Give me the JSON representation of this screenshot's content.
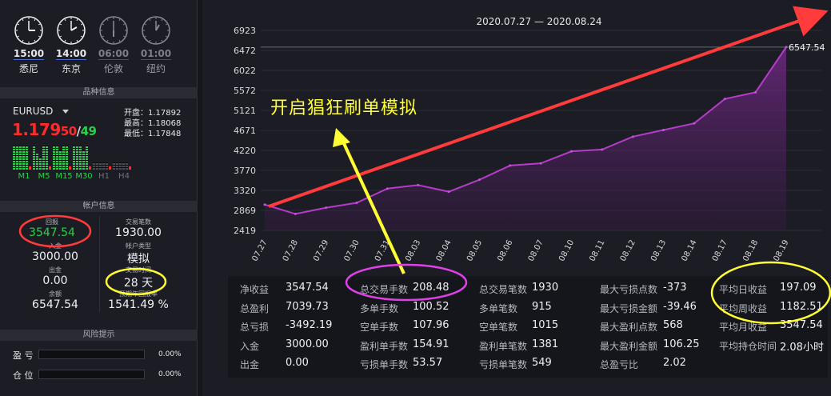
{
  "clocks": [
    {
      "time": "15:00",
      "city": "悉尼",
      "active": true,
      "h": 15,
      "m": 0
    },
    {
      "time": "14:00",
      "city": "东京",
      "active": true,
      "h": 14,
      "m": 0
    },
    {
      "time": "06:00",
      "city": "伦敦",
      "active": false,
      "h": 6,
      "m": 0
    },
    {
      "time": "01:00",
      "city": "纽约",
      "active": false,
      "h": 1,
      "m": 0
    }
  ],
  "sections": {
    "variety": "品种信息",
    "account": "帐户信息",
    "risk": "风险提示"
  },
  "quote": {
    "symbol": "EURUSD",
    "price_main": "1.179",
    "price_a": "50",
    "slash": "/",
    "price_b": "49",
    "open": "开盘：1.17892",
    "high": "最高：1.18068",
    "low": "最低：1.17848"
  },
  "timeframes": [
    {
      "label": "M1",
      "active": true
    },
    {
      "label": "M5",
      "active": true
    },
    {
      "label": "M15",
      "active": true
    },
    {
      "label": "M30",
      "active": true
    },
    {
      "label": "H1",
      "active": false
    },
    {
      "label": "H4",
      "active": false
    }
  ],
  "account": {
    "return_label": "回报",
    "return_value": "3547.54",
    "trades_label": "交易笔数",
    "trades_value": "1930.00",
    "deposit_label": "入金",
    "deposit_value": "3000.00",
    "acctype_label": "帐户类型",
    "acctype_value": "模拟",
    "withdraw_label": "出金",
    "withdraw_value": "0.00",
    "days_label": "交易时间",
    "days_value": "28 天",
    "balance_label": "余额",
    "balance_value": "6547.54",
    "rate_label": "预期年回报率",
    "rate_value": "1541.49 %"
  },
  "risk": [
    {
      "label": "盈 亏",
      "pct": "0.00%"
    },
    {
      "label": "仓 位",
      "pct": "0.00%"
    }
  ],
  "chart_data": {
    "type": "area",
    "title": "2020.07.27 — 2020.08.24",
    "categories": [
      "07.27",
      "07.28",
      "07.29",
      "07.30",
      "07.31",
      "08.03",
      "08.04",
      "08.05",
      "08.06",
      "08.07",
      "08.10",
      "08.11",
      "08.12",
      "08.13",
      "08.14",
      "08.17",
      "08.18",
      "08.19"
    ],
    "values": [
      3000,
      2790,
      2930,
      3040,
      3360,
      3440,
      3290,
      3560,
      3880,
      3930,
      4200,
      4240,
      4530,
      4680,
      4830,
      5380,
      5530,
      6547.54
    ],
    "yticks": [
      6923,
      6472,
      6022,
      5572,
      5121,
      4671,
      4220,
      3770,
      3320,
      2869,
      2419
    ],
    "ylim": [
      2419,
      6923
    ],
    "end_label": "6547.54"
  },
  "annotation": "开启猖狂刷单模拟",
  "stats": [
    [
      {
        "l": "净收益",
        "v": "3547.54"
      },
      {
        "l": "总盈利",
        "v": "7039.73"
      },
      {
        "l": "总亏损",
        "v": "-3492.19"
      },
      {
        "l": "入金",
        "v": "3000.00"
      },
      {
        "l": "出金",
        "v": "0.00"
      }
    ],
    [
      {
        "l": "总交易手数",
        "v": "208.48"
      },
      {
        "l": "多单手数",
        "v": "100.52"
      },
      {
        "l": "空单手数",
        "v": "107.96"
      },
      {
        "l": "盈利单手数",
        "v": "154.91"
      },
      {
        "l": "亏损单手数",
        "v": "53.57"
      }
    ],
    [
      {
        "l": "总交易笔数",
        "v": "1930"
      },
      {
        "l": "多单笔数",
        "v": "915"
      },
      {
        "l": "空单笔数",
        "v": "1015"
      },
      {
        "l": "盈利单笔数",
        "v": "1381"
      },
      {
        "l": "亏损单笔数",
        "v": "549"
      }
    ],
    [
      {
        "l": "最大亏损点数",
        "v": "-373"
      },
      {
        "l": "最大亏损金额",
        "v": "-39.46"
      },
      {
        "l": "最大盈利点数",
        "v": "568"
      },
      {
        "l": "最大盈利金额",
        "v": "106.25"
      },
      {
        "l": "总盈亏比",
        "v": "2.02"
      }
    ],
    [
      {
        "l": "平均日收益",
        "v": "197.09"
      },
      {
        "l": "平均周收益",
        "v": "1182.51"
      },
      {
        "l": "平均月收益",
        "v": "3547.54"
      },
      {
        "l": "平均持仓时间",
        "v": "2.08小时"
      }
    ]
  ],
  "colors": {
    "accent_red": "#ff2a2a",
    "accent_green": "#2bd04a",
    "line": "#b43cc8",
    "circle_yellow": "#ffff33",
    "circle_magenta": "#e040e8",
    "circle_red": "#ff3b3b"
  }
}
